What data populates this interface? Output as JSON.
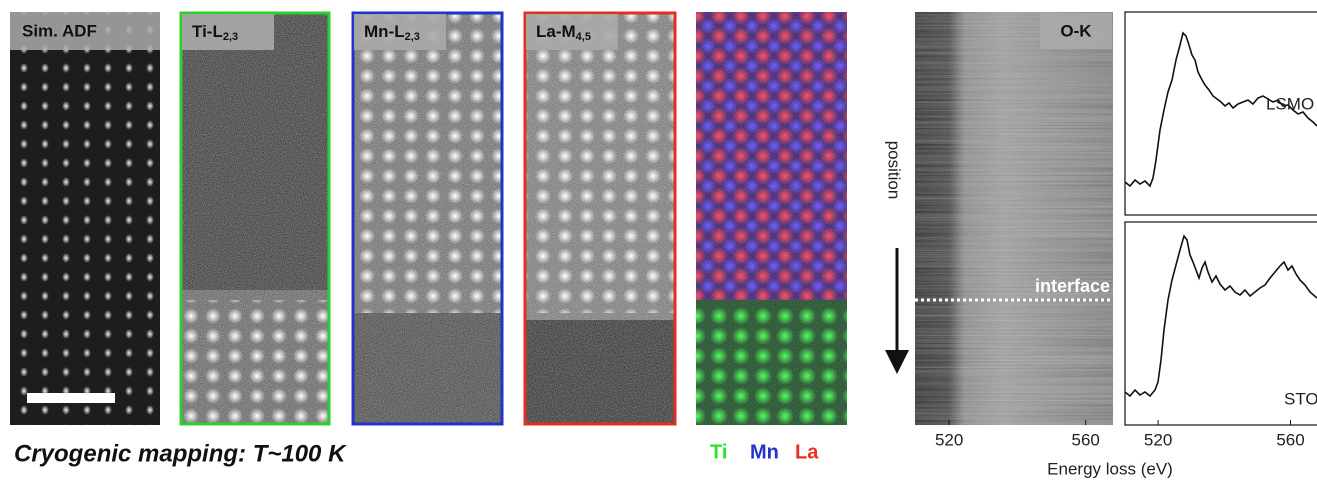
{
  "panels": [
    {
      "label": "Sim. ADF"
    },
    {
      "label": "Ti-L",
      "sub": "2,3"
    },
    {
      "label": "Mn-L",
      "sub": "2,3"
    },
    {
      "label": "La-M",
      "sub": "4,5"
    }
  ],
  "caption": "Cryogenic mapping: T~100 K",
  "legend": [
    "Ti",
    "Mn",
    "La"
  ],
  "eels": {
    "edge": "O-K",
    "y_label": "position",
    "interface": "interface",
    "spectra": [
      "LSMO",
      "STO"
    ],
    "energy_axis": {
      "label": "Energy loss (eV)",
      "xlim": [
        510,
        568
      ],
      "xticks": [
        520,
        560
      ]
    }
  }
}
